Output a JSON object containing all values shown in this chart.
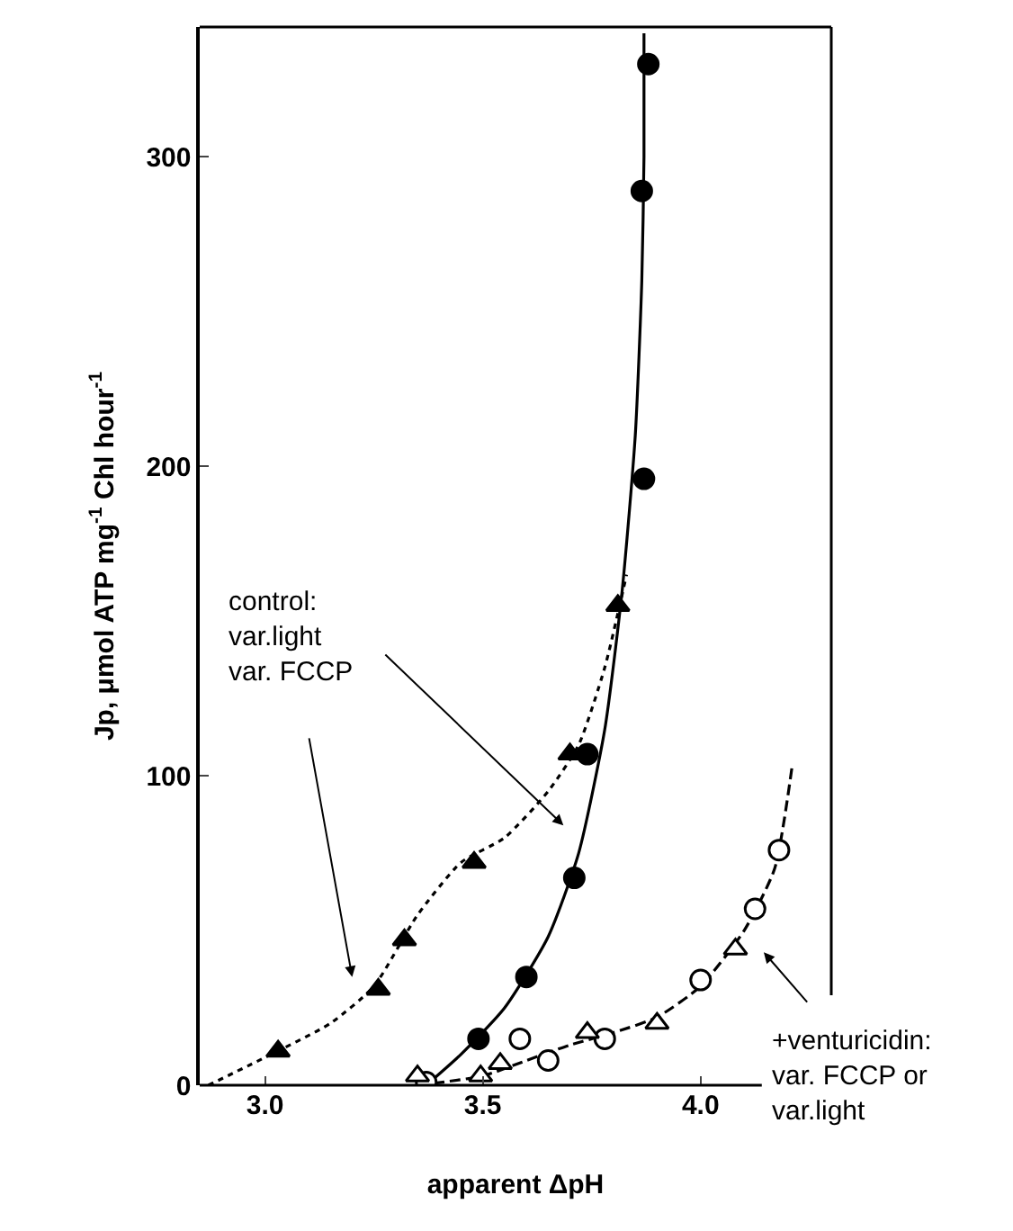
{
  "chart_data": {
    "type": "scatter",
    "xlabel": "apparent ΔpH",
    "ylabel": "Jp, μmol ATP mg$^{-1}$ Chl hour$^{-1}$",
    "xlim": [
      2.85,
      4.3
    ],
    "xticks": [
      {
        "value": 3,
        "label": "3.0"
      },
      3.5,
      {
        "value": 4,
        "label": "4.0"
      }
    ],
    "ylim": [
      0,
      342
    ],
    "yticks": [
      0,
      100,
      200,
      300
    ],
    "grid": false,
    "series": [
      {
        "type": "line",
        "marker": "none",
        "line_style": "solid",
        "color": "#000000",
        "x": [
          3.37,
          3.45,
          3.55,
          3.65,
          3.72,
          3.78,
          3.82,
          3.85,
          3.865,
          3.87,
          3.87
        ],
        "values": [
          0,
          10,
          25,
          48,
          75,
          115,
          160,
          210,
          260,
          300,
          340
        ]
      },
      {
        "type": "line",
        "marker": "none",
        "line_style": "dotted",
        "color": "#000000",
        "x": [
          2.87,
          3.0,
          3.15,
          3.25,
          3.35,
          3.45,
          3.55,
          3.65,
          3.72,
          3.78,
          3.83
        ],
        "values": [
          0,
          9,
          20,
          32,
          55,
          72,
          80,
          95,
          110,
          135,
          165
        ]
      },
      {
        "type": "line",
        "marker": "none",
        "line_style": "dashed",
        "color": "#000000",
        "x": [
          3.35,
          3.5,
          3.6,
          3.7,
          3.8,
          3.9,
          4.0,
          4.1,
          4.17,
          4.21
        ],
        "values": [
          0,
          3,
          8,
          13,
          17,
          22,
          32,
          50,
          70,
          103
        ]
      },
      {
        "marker": "circle",
        "color": "#000000",
        "x": [
          3.49,
          3.6,
          3.71,
          3.74,
          3.87,
          3.865,
          3.88
        ],
        "values": [
          15,
          35,
          67,
          107,
          196,
          289,
          330
        ]
      },
      {
        "marker": "triangle",
        "color": "#000000",
        "x": [
          3.03,
          3.26,
          3.32,
          3.48,
          3.7,
          3.81
        ],
        "values": [
          11,
          31,
          47,
          72,
          107,
          155
        ]
      },
      {
        "marker": "circle",
        "color": "#ffffff",
        "x": [
          3.37,
          3.585,
          3.65,
          3.78,
          4.0,
          4.125,
          4.18
        ],
        "values": [
          1,
          15,
          8,
          15,
          34,
          57,
          76
        ]
      },
      {
        "marker": "triangle",
        "color": "#ffffff",
        "x": [
          3.35,
          3.495,
          3.54,
          3.74,
          3.9,
          4.08
        ],
        "values": [
          3,
          3,
          7,
          17,
          20,
          44
        ]
      }
    ],
    "annotations": [
      "control:\nvar.light\nvar. FCCP",
      "+venturicidin:\nvar. FCCP or\nvar.light"
    ]
  }
}
